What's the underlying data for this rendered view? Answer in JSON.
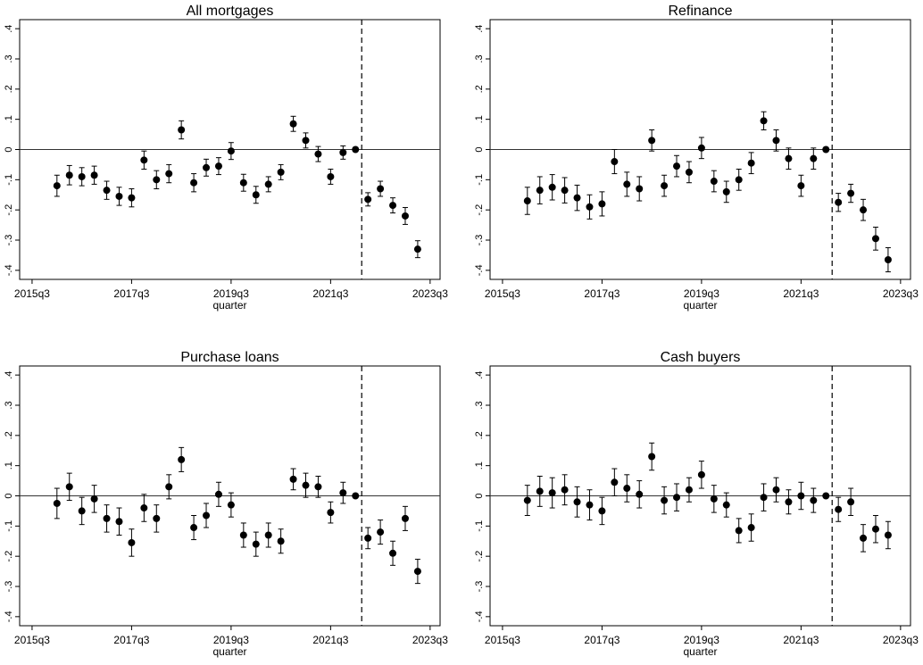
{
  "chart_data": [
    {
      "type": "errorbar",
      "title": "All mortgages",
      "xlabel": "quarter",
      "color": "#000000",
      "x": [
        224,
        225,
        226,
        227,
        228,
        229,
        230,
        231,
        232,
        233,
        234,
        235,
        236,
        237,
        238,
        239,
        240,
        241,
        242,
        243,
        244,
        245,
        246,
        247,
        248,
        249,
        250,
        251,
        252,
        253
      ],
      "values": [
        -0.12,
        -0.085,
        -0.09,
        -0.085,
        -0.135,
        -0.155,
        -0.16,
        -0.035,
        -0.1,
        -0.08,
        0.065,
        -0.11,
        -0.06,
        -0.055,
        -0.005,
        -0.11,
        -0.15,
        -0.115,
        -0.075,
        0.085,
        0.03,
        -0.015,
        -0.09,
        -0.01,
        0,
        -0.165,
        -0.13,
        -0.185,
        -0.22,
        -0.33
      ],
      "errors": [
        0.035,
        0.032,
        0.03,
        0.03,
        0.03,
        0.03,
        0.03,
        0.03,
        0.03,
        0.03,
        0.03,
        0.03,
        0.028,
        0.028,
        0.028,
        0.028,
        0.028,
        0.025,
        0.025,
        0.025,
        0.025,
        0.025,
        0.025,
        0.022,
        0,
        0.022,
        0.025,
        0.025,
        0.028,
        0.028
      ],
      "xlim": [
        221,
        254.8
      ],
      "ylim": [
        -0.43,
        0.43
      ],
      "xticks": [
        {
          "value": 222,
          "label": "2015q3"
        },
        {
          "value": 230,
          "label": "2017q3"
        },
        {
          "value": 238,
          "label": "2019q3"
        },
        {
          "value": 246,
          "label": "2021q3"
        },
        {
          "value": 254,
          "label": "2023q3"
        }
      ],
      "yticks": [
        {
          "value": 0.4,
          "label": ".4"
        },
        {
          "value": 0.3,
          "label": ".3"
        },
        {
          "value": 0.2,
          "label": ".2"
        },
        {
          "value": 0.1,
          "label": ".1"
        },
        0,
        {
          "value": -0.1,
          "label": "-.1"
        },
        {
          "value": -0.2,
          "label": "-.2"
        },
        {
          "value": -0.3,
          "label": "-.3"
        },
        {
          "value": -0.4,
          "label": "-.4"
        }
      ],
      "hline": 0,
      "vline": 248.5
    },
    {
      "type": "errorbar",
      "title": "Refinance",
      "xlabel": "quarter",
      "color": "#000000",
      "x": [
        224,
        225,
        226,
        227,
        228,
        229,
        230,
        231,
        232,
        233,
        234,
        235,
        236,
        237,
        238,
        239,
        240,
        241,
        242,
        243,
        244,
        245,
        246,
        247,
        248,
        249,
        250,
        251,
        252,
        253
      ],
      "values": [
        -0.17,
        -0.135,
        -0.125,
        -0.135,
        -0.16,
        -0.19,
        -0.18,
        -0.04,
        -0.115,
        -0.13,
        0.03,
        -0.12,
        -0.055,
        -0.075,
        0.005,
        -0.105,
        -0.14,
        -0.1,
        -0.045,
        0.095,
        0.03,
        -0.03,
        -0.12,
        -0.03,
        0,
        -0.175,
        -0.145,
        -0.2,
        -0.295,
        -0.365
      ],
      "errors": [
        0.045,
        0.045,
        0.042,
        0.042,
        0.042,
        0.04,
        0.04,
        0.04,
        0.04,
        0.04,
        0.035,
        0.035,
        0.035,
        0.035,
        0.035,
        0.035,
        0.035,
        0.035,
        0.035,
        0.03,
        0.035,
        0.035,
        0.035,
        0.035,
        0,
        0.03,
        0.03,
        0.035,
        0.038,
        0.04
      ],
      "xlim": [
        221,
        254.8
      ],
      "ylim": [
        -0.43,
        0.43
      ],
      "xticks": [
        {
          "value": 222,
          "label": "2015q3"
        },
        {
          "value": 230,
          "label": "2017q3"
        },
        {
          "value": 238,
          "label": "2019q3"
        },
        {
          "value": 246,
          "label": "2021q3"
        },
        {
          "value": 254,
          "label": "2023q3"
        }
      ],
      "yticks": [
        {
          "value": 0.4,
          "label": ".4"
        },
        {
          "value": 0.3,
          "label": ".3"
        },
        {
          "value": 0.2,
          "label": ".2"
        },
        {
          "value": 0.1,
          "label": ".1"
        },
        0,
        {
          "value": -0.1,
          "label": "-.1"
        },
        {
          "value": -0.2,
          "label": "-.2"
        },
        {
          "value": -0.3,
          "label": "-.3"
        },
        {
          "value": -0.4,
          "label": "-.4"
        }
      ],
      "hline": 0,
      "vline": 248.5
    },
    {
      "type": "errorbar",
      "title": "Purchase loans",
      "xlabel": "quarter",
      "color": "#000000",
      "x": [
        224,
        225,
        226,
        227,
        228,
        229,
        230,
        231,
        232,
        233,
        234,
        235,
        236,
        237,
        238,
        239,
        240,
        241,
        242,
        243,
        244,
        245,
        246,
        247,
        248,
        249,
        250,
        251,
        252,
        253
      ],
      "values": [
        -0.025,
        0.03,
        -0.05,
        -0.01,
        -0.075,
        -0.085,
        -0.155,
        -0.04,
        -0.075,
        0.03,
        0.12,
        -0.105,
        -0.065,
        0.005,
        -0.03,
        -0.13,
        -0.16,
        -0.13,
        -0.15,
        0.055,
        0.035,
        0.03,
        -0.055,
        0.01,
        0,
        -0.14,
        -0.12,
        -0.19,
        -0.075,
        -0.25
      ],
      "errors": [
        0.05,
        0.045,
        0.045,
        0.045,
        0.045,
        0.045,
        0.045,
        0.045,
        0.045,
        0.04,
        0.04,
        0.04,
        0.04,
        0.04,
        0.04,
        0.04,
        0.04,
        0.04,
        0.04,
        0.035,
        0.04,
        0.035,
        0.035,
        0.035,
        0,
        0.035,
        0.04,
        0.04,
        0.04,
        0.04
      ],
      "xlim": [
        221,
        254.8
      ],
      "ylim": [
        -0.43,
        0.43
      ],
      "xticks": [
        {
          "value": 222,
          "label": "2015q3"
        },
        {
          "value": 230,
          "label": "2017q3"
        },
        {
          "value": 238,
          "label": "2019q3"
        },
        {
          "value": 246,
          "label": "2021q3"
        },
        {
          "value": 254,
          "label": "2023q3"
        }
      ],
      "yticks": [
        {
          "value": 0.4,
          "label": ".4"
        },
        {
          "value": 0.3,
          "label": ".3"
        },
        {
          "value": 0.2,
          "label": ".2"
        },
        {
          "value": 0.1,
          "label": ".1"
        },
        0,
        {
          "value": -0.1,
          "label": "-.1"
        },
        {
          "value": -0.2,
          "label": "-.2"
        },
        {
          "value": -0.3,
          "label": "-.3"
        },
        {
          "value": -0.4,
          "label": "-.4"
        }
      ],
      "hline": 0,
      "vline": 248.5
    },
    {
      "type": "errorbar",
      "title": "Cash buyers",
      "xlabel": "quarter",
      "color": "#000000",
      "x": [
        224,
        225,
        226,
        227,
        228,
        229,
        230,
        231,
        232,
        233,
        234,
        235,
        236,
        237,
        238,
        239,
        240,
        241,
        242,
        243,
        244,
        245,
        246,
        247,
        248,
        249,
        250,
        251,
        252,
        253
      ],
      "values": [
        -0.015,
        0.015,
        0.01,
        0.02,
        -0.02,
        -0.03,
        -0.05,
        0.045,
        0.025,
        0.005,
        0.13,
        -0.015,
        -0.005,
        0.02,
        0.07,
        -0.01,
        -0.03,
        -0.115,
        -0.105,
        -0.005,
        0.02,
        -0.02,
        0,
        -0.015,
        0,
        -0.045,
        -0.02,
        -0.14,
        -0.11,
        -0.13
      ],
      "errors": [
        0.05,
        0.05,
        0.05,
        0.05,
        0.05,
        0.05,
        0.045,
        0.045,
        0.045,
        0.045,
        0.045,
        0.045,
        0.045,
        0.04,
        0.045,
        0.045,
        0.04,
        0.04,
        0.045,
        0.045,
        0.04,
        0.04,
        0.045,
        0.04,
        0,
        0.04,
        0.045,
        0.045,
        0.045,
        0.045
      ],
      "xlim": [
        221,
        254.8
      ],
      "ylim": [
        -0.43,
        0.43
      ],
      "xticks": [
        {
          "value": 222,
          "label": "2015q3"
        },
        {
          "value": 230,
          "label": "2017q3"
        },
        {
          "value": 238,
          "label": "2019q3"
        },
        {
          "value": 246,
          "label": "2021q3"
        },
        {
          "value": 254,
          "label": "2023q3"
        }
      ],
      "yticks": [
        {
          "value": 0.4,
          "label": ".4"
        },
        {
          "value": 0.3,
          "label": ".3"
        },
        {
          "value": 0.2,
          "label": ".2"
        },
        {
          "value": 0.1,
          "label": ".1"
        },
        0,
        {
          "value": -0.1,
          "label": "-.1"
        },
        {
          "value": -0.2,
          "label": "-.2"
        },
        {
          "value": -0.3,
          "label": "-.3"
        },
        {
          "value": -0.4,
          "label": "-.4"
        }
      ],
      "hline": 0,
      "vline": 248.5
    }
  ]
}
